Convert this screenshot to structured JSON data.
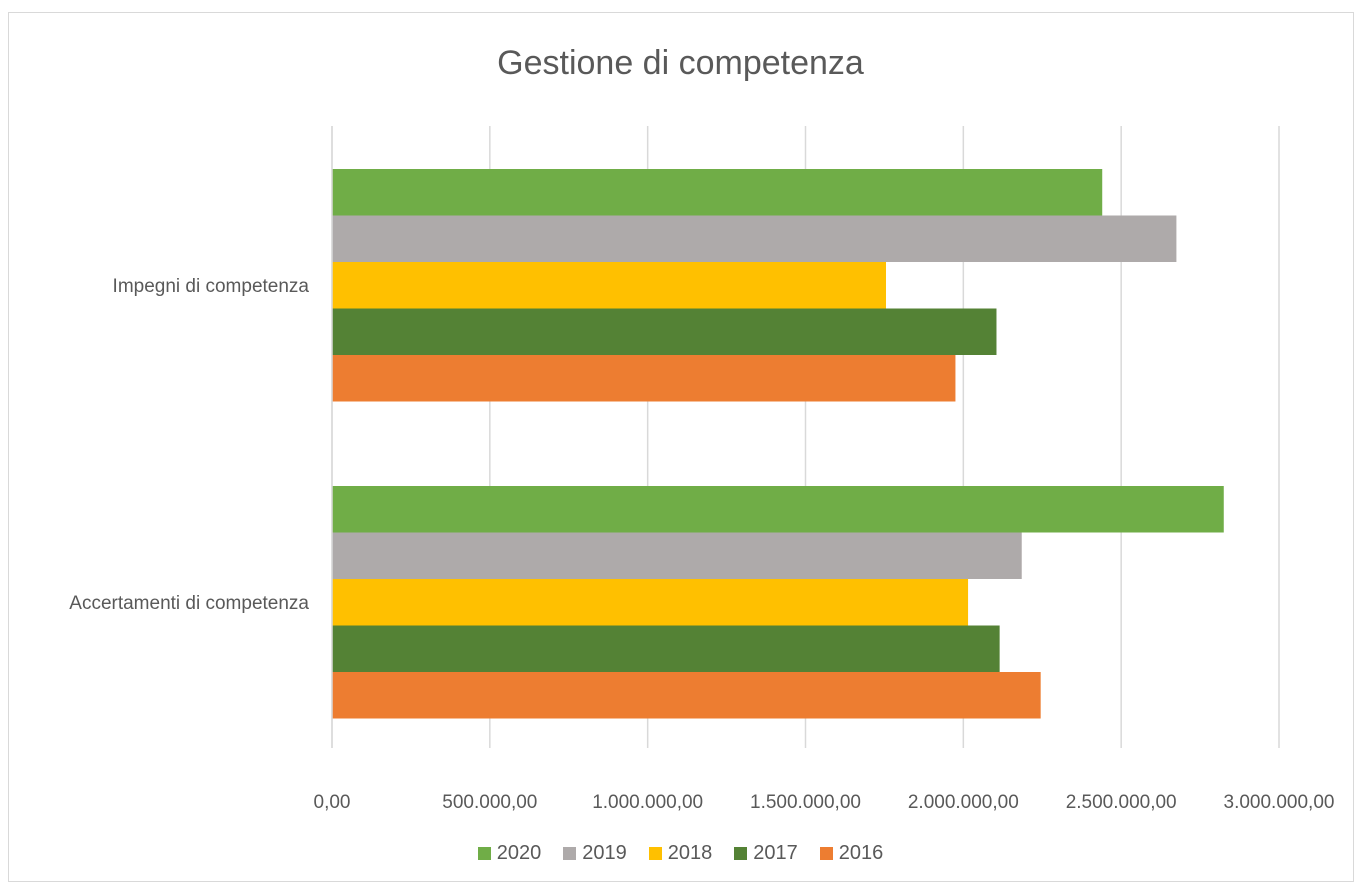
{
  "chart_data": {
    "type": "bar",
    "orientation": "horizontal",
    "title": "Gestione di competenza",
    "categories": [
      "Impegni di competenza",
      "Accertamenti di competenza"
    ],
    "xlim": [
      0,
      3000000
    ],
    "x_ticks": [
      "0,00",
      "500.000,00",
      "1.000.000,00",
      "1.500.000,00",
      "2.000.000,00",
      "2.500.000,00",
      "3.000.000,00"
    ],
    "x_tick_values": [
      0,
      500000,
      1000000,
      1500000,
      2000000,
      2500000,
      3000000
    ],
    "grid": true,
    "legend_position": "bottom",
    "series": [
      {
        "name": "2020",
        "color": "#70ad47",
        "values": [
          2440000,
          2825000
        ]
      },
      {
        "name": "2019",
        "color": "#aeaaaa",
        "values": [
          2675000,
          2185000
        ]
      },
      {
        "name": "2018",
        "color": "#ffc000",
        "values": [
          1755000,
          2015000
        ]
      },
      {
        "name": "2017",
        "color": "#548235",
        "values": [
          2105000,
          2115000
        ]
      },
      {
        "name": "2016",
        "color": "#ed7d31",
        "values": [
          1975000,
          2245000
        ]
      }
    ]
  }
}
